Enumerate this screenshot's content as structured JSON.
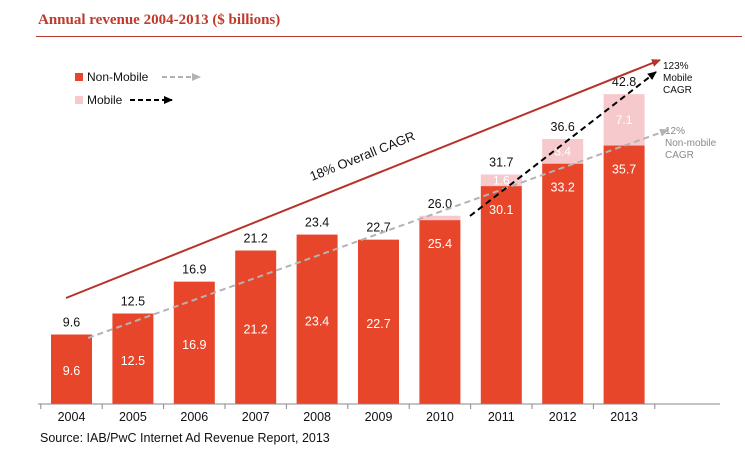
{
  "title": "Annual revenue 2004-2013 ($ billions)",
  "source": "Source: IAB/PwC Internet Ad Revenue Report, 2013",
  "colors": {
    "non_mobile": "#e8462a",
    "mobile": "#f6c9cd",
    "title": "#c0392b",
    "overall_arrow": "#b8322a",
    "non_mobile_arrow": "#b3b3b3",
    "mobile_arrow": "#000000"
  },
  "annotations": {
    "overall_cagr": "18% Overall CAGR",
    "mobile_cagr": [
      "123%",
      "Mobile",
      "CAGR"
    ],
    "non_mobile_cagr": [
      "12%",
      "Non-mobile",
      "CAGR"
    ]
  },
  "chart_data": {
    "type": "bar",
    "stacked": true,
    "categories": [
      "2004",
      "2005",
      "2006",
      "2007",
      "2008",
      "2009",
      "2010",
      "2011",
      "2012",
      "2013"
    ],
    "series": [
      {
        "name": "Non-Mobile",
        "values": [
          9.6,
          12.5,
          16.9,
          21.2,
          23.4,
          22.7,
          25.4,
          30.1,
          33.2,
          35.7
        ]
      },
      {
        "name": "Mobile",
        "values": [
          0,
          0,
          0,
          0,
          0,
          0,
          0.6,
          1.6,
          3.4,
          7.1
        ]
      }
    ],
    "totals": [
      9.6,
      12.5,
      16.9,
      21.2,
      23.4,
      22.7,
      26.0,
      31.7,
      36.6,
      42.8
    ],
    "mobile_labels": [
      "",
      "",
      "",
      "",
      "",
      "",
      "",
      "1.6",
      "3.4",
      "7.1"
    ],
    "ylim": [
      0,
      45
    ],
    "legend_position": "top-left"
  }
}
